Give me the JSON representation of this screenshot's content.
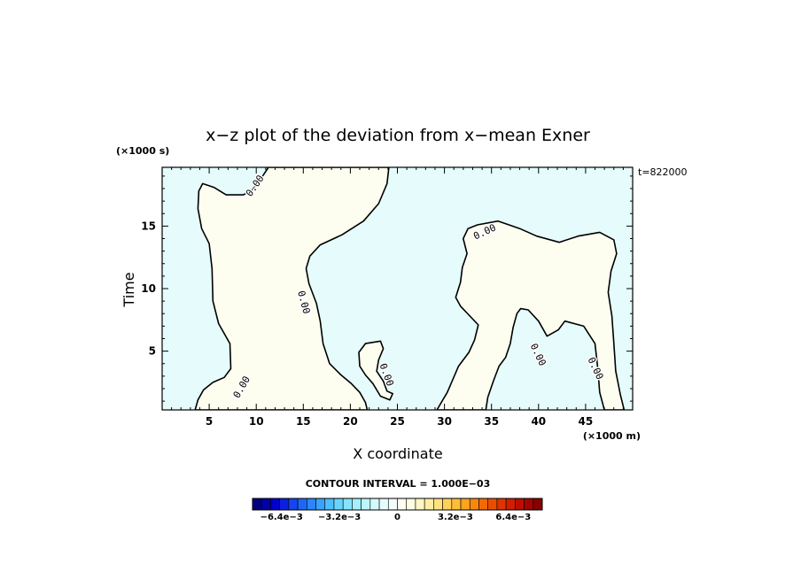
{
  "chart_data": {
    "type": "heatmap",
    "title": "x−z plot of the deviation from x−mean Exner",
    "xlabel": "X coordinate",
    "ylabel": "Time",
    "x_unit": "(×1000 m)",
    "y_unit": "(×1000 s)",
    "time_stamp": "t=822000",
    "xlim": [
      0,
      50
    ],
    "ylim": [
      0.3,
      19.7
    ],
    "x_ticks": [
      5,
      10,
      15,
      20,
      25,
      30,
      35,
      40,
      45
    ],
    "y_ticks": [
      5,
      10,
      15
    ],
    "x_tick_labels": [
      "5",
      "10",
      "15",
      "20",
      "25",
      "30",
      "35",
      "40",
      "45"
    ],
    "y_tick_labels": [
      "5",
      "10",
      "15"
    ],
    "contour_label": "0.00",
    "contour_interval_text": "CONTOUR INTERVAL = 1.000E−03",
    "colors": {
      "negative_fill": "#e6fbfb",
      "positive_fill": "#fdfdf0"
    },
    "colorbar": {
      "min": -0.008,
      "max": 0.008,
      "levels": 32,
      "tick_values": [
        -0.0064,
        -0.0032,
        0,
        0.0032,
        0.0064
      ],
      "tick_labels": [
        "−6.4e−3",
        "−3.2e−3",
        "0",
        "3.2e−3",
        "6.4e−3"
      ],
      "colors": [
        "#00007f",
        "#0000a6",
        "#0000cc",
        "#0a1fe0",
        "#1545ee",
        "#1f66f5",
        "#2a86fa",
        "#3aa3fd",
        "#4fbefe",
        "#68d4fe",
        "#84e4fd",
        "#a2effd",
        "#bdf5fd",
        "#d4f9fd",
        "#e6fbfb",
        "#f2fdfd",
        "#fdfdf2",
        "#fdfbe0",
        "#fdf6c5",
        "#fdeea4",
        "#fde27e",
        "#fdd15a",
        "#fdbd38",
        "#fca320",
        "#f8870f",
        "#f26a05",
        "#e94e00",
        "#de3400",
        "#cf1e00",
        "#bc0e00",
        "#a30400",
        "#870000"
      ]
    },
    "contour_regions": [
      {
        "sign": "positive",
        "boundary": [
          [
            3.5,
            0.3
          ],
          [
            3.8,
            1.1
          ],
          [
            4.4,
            1.9
          ],
          [
            5.4,
            2.5
          ],
          [
            6.6,
            2.9
          ],
          [
            7.3,
            3.6
          ],
          [
            7.2,
            5.6
          ],
          [
            6.0,
            7.2
          ],
          [
            5.4,
            9.0
          ],
          [
            5.3,
            11.6
          ],
          [
            5.0,
            13.6
          ],
          [
            4.2,
            14.8
          ],
          [
            3.8,
            16.4
          ],
          [
            3.9,
            17.8
          ],
          [
            4.3,
            18.4
          ],
          [
            5.5,
            18.1
          ],
          [
            6.8,
            17.5
          ],
          [
            8.6,
            17.5
          ],
          [
            9.5,
            17.8
          ],
          [
            10.5,
            18.8
          ],
          [
            11.3,
            19.7
          ],
          [
            24.1,
            19.7
          ],
          [
            23.9,
            18.4
          ],
          [
            23.0,
            16.8
          ],
          [
            21.4,
            15.4
          ],
          [
            19.1,
            14.3
          ],
          [
            16.8,
            13.5
          ],
          [
            15.7,
            12.6
          ],
          [
            15.3,
            11.6
          ],
          [
            15.6,
            10.4
          ],
          [
            16.4,
            8.8
          ],
          [
            16.8,
            7.4
          ],
          [
            17.1,
            5.6
          ],
          [
            17.8,
            4.0
          ],
          [
            19.0,
            3.1
          ],
          [
            20.1,
            2.4
          ],
          [
            21.0,
            1.7
          ],
          [
            21.6,
            0.9
          ],
          [
            21.8,
            0.3
          ]
        ]
      },
      {
        "sign": "positive",
        "boundary": [
          [
            29.2,
            0.3
          ],
          [
            30.3,
            1.7
          ],
          [
            31.5,
            3.8
          ],
          [
            32.6,
            4.9
          ],
          [
            33.2,
            5.9
          ],
          [
            33.6,
            7.1
          ],
          [
            31.7,
            8.6
          ],
          [
            31.2,
            9.3
          ],
          [
            31.7,
            10.5
          ],
          [
            31.9,
            11.7
          ],
          [
            32.4,
            12.8
          ],
          [
            32.0,
            14.0
          ],
          [
            32.5,
            14.8
          ],
          [
            33.5,
            15.1
          ],
          [
            35.7,
            15.4
          ],
          [
            38.0,
            14.8
          ],
          [
            39.8,
            14.2
          ],
          [
            42.2,
            13.7
          ],
          [
            44.2,
            14.2
          ],
          [
            46.5,
            14.5
          ],
          [
            48.0,
            13.9
          ],
          [
            48.3,
            12.8
          ],
          [
            47.7,
            11.4
          ],
          [
            47.4,
            9.7
          ],
          [
            47.8,
            7.8
          ],
          [
            48.0,
            5.6
          ],
          [
            48.2,
            3.4
          ],
          [
            48.7,
            1.5
          ],
          [
            49.1,
            0.3
          ],
          [
            47.0,
            0.3
          ],
          [
            46.5,
            1.7
          ],
          [
            46.3,
            3.6
          ],
          [
            46.0,
            5.6
          ],
          [
            44.8,
            7.0
          ],
          [
            42.8,
            7.4
          ],
          [
            42.1,
            6.7
          ],
          [
            40.9,
            6.2
          ],
          [
            40.0,
            7.4
          ],
          [
            38.9,
            8.3
          ],
          [
            38.1,
            8.4
          ],
          [
            37.7,
            8.0
          ],
          [
            37.3,
            6.9
          ],
          [
            37.0,
            5.6
          ],
          [
            36.5,
            4.5
          ],
          [
            35.8,
            3.8
          ],
          [
            35.2,
            2.6
          ],
          [
            34.6,
            1.3
          ],
          [
            34.4,
            0.3
          ]
        ]
      },
      {
        "sign": "positive",
        "boundary": [
          [
            21.0,
            3.8
          ],
          [
            20.9,
            4.9
          ],
          [
            21.6,
            5.6
          ],
          [
            23.2,
            5.8
          ],
          [
            23.5,
            5.2
          ],
          [
            23.0,
            4.3
          ],
          [
            22.8,
            3.4
          ],
          [
            23.5,
            2.6
          ],
          [
            23.9,
            1.8
          ],
          [
            24.5,
            1.6
          ],
          [
            24.2,
            1.1
          ],
          [
            23.2,
            1.4
          ],
          [
            22.4,
            2.4
          ],
          [
            21.6,
            3.1
          ]
        ]
      }
    ]
  }
}
